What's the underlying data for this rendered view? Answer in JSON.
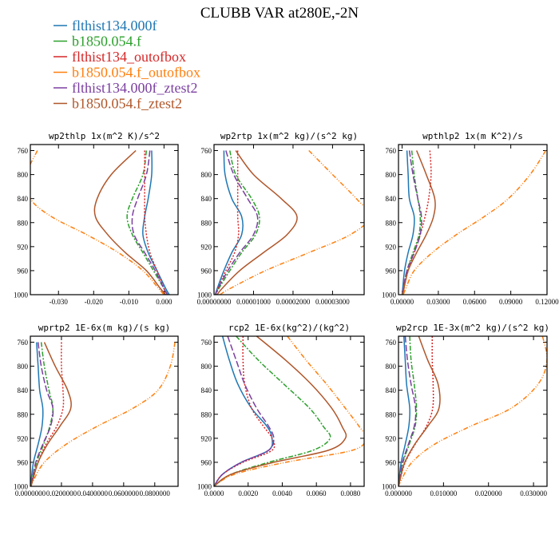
{
  "title": "CLUBB VAR at280E,-2N",
  "legend": [
    {
      "name": "flthist134.000f",
      "color": "#1f77b4",
      "dash": ""
    },
    {
      "name": "b1850.054.f",
      "color": "#2ca02c",
      "dash": "6 2 2 2"
    },
    {
      "name": "flthist134_outofbox",
      "color": "#d62728",
      "dash": "2 2"
    },
    {
      "name": "b1850.054.f_outofbox",
      "color": "#ff7f0e",
      "dash": "6 2 1 2 1 2"
    },
    {
      "name": "flthist134.000f_ztest2",
      "color": "#7b3fa0",
      "dash": "8 3"
    },
    {
      "name": "b1850.054.f_ztest2",
      "color": "#b0562a",
      "dash": ""
    }
  ],
  "chart_data": [
    {
      "type": "line",
      "title": "wp2thlp  1x(m^2 K)/s^2",
      "xlim": [
        -0.038,
        0.004
      ],
      "xticks": [
        -0.03,
        -0.02,
        -0.01,
        0.0
      ],
      "xticklabels": [
        "-0.030",
        "-0.020",
        "-0.010",
        "0.000"
      ],
      "ylim": [
        1000,
        750
      ],
      "yticks": [
        760,
        800,
        840,
        880,
        920,
        960,
        1000
      ],
      "y": [
        760,
        800,
        840,
        870,
        900,
        930,
        960,
        990,
        1000
      ],
      "series": [
        {
          "name": "flthist134.000f",
          "values": [
            -0.0035,
            -0.0035,
            -0.0045,
            -0.0055,
            -0.006,
            -0.0045,
            -0.002,
            0.0005,
            0.0015
          ]
        },
        {
          "name": "b1850.054.f",
          "values": [
            -0.005,
            -0.006,
            -0.009,
            -0.0105,
            -0.009,
            -0.006,
            -0.003,
            0.0,
            0.001
          ]
        },
        {
          "name": "flthist134_outofbox",
          "values": [
            -0.0055,
            -0.0055,
            -0.0055,
            -0.0055,
            -0.005,
            -0.004,
            -0.002,
            0.0,
            0.0005
          ]
        },
        {
          "name": "b1850.054.f_outofbox",
          "values": [
            -0.036,
            -0.039,
            -0.038,
            -0.032,
            -0.022,
            -0.013,
            -0.006,
            -0.0015,
            0.0
          ]
        },
        {
          "name": "flthist134.000f_ztest2",
          "values": [
            -0.004,
            -0.005,
            -0.0075,
            -0.009,
            -0.0085,
            -0.0055,
            -0.0025,
            0.0,
            0.001
          ]
        },
        {
          "name": "b1850.054.f_ztest2",
          "values": [
            -0.008,
            -0.015,
            -0.019,
            -0.0195,
            -0.016,
            -0.011,
            -0.005,
            -0.001,
            0.0005
          ]
        }
      ]
    },
    {
      "type": "line",
      "title": "wp2rtp  1x(m^2 kg)/(s^2 kg)",
      "xlim": [
        0,
        3.8e-05
      ],
      "xticks": [
        0,
        1e-05,
        2e-05,
        3e-05
      ],
      "xticklabels": [
        "0.00000000",
        "0.00001000",
        "0.00002000",
        "0.00003000"
      ],
      "ylim": [
        1000,
        750
      ],
      "yticks": [
        760,
        800,
        840,
        880,
        920,
        960,
        1000
      ],
      "y": [
        760,
        800,
        840,
        870,
        900,
        930,
        960,
        990,
        1000
      ],
      "series": [
        {
          "name": "flthist134.000f",
          "values": [
            2.5e-06,
            2.8e-06,
            4.5e-06,
            7e-06,
            7e-06,
            4.5e-06,
            2.5e-06,
            8e-07,
            3e-07
          ]
        },
        {
          "name": "b1850.054.f",
          "values": [
            4e-06,
            5.5e-06,
            9.5e-06,
            1.15e-05,
            1.05e-05,
            7e-06,
            4e-06,
            1.2e-06,
            5e-07
          ]
        },
        {
          "name": "flthist134_outofbox",
          "values": [
            6e-06,
            6e-06,
            6e-06,
            6e-06,
            6.2e-06,
            5.2e-06,
            3e-06,
            1e-06,
            4e-07
          ]
        },
        {
          "name": "b1850.054.f_outofbox",
          "values": [
            2.4e-05,
            3e-05,
            3.6e-05,
            3.95e-05,
            3.45e-05,
            2.4e-05,
            1.3e-05,
            4e-06,
            1.5e-06
          ]
        },
        {
          "name": "flthist134.000f_ztest2",
          "values": [
            3e-06,
            5e-06,
            8.5e-06,
            1.1e-05,
            1e-05,
            6.5e-06,
            3.5e-06,
            1e-06,
            4e-07
          ]
        },
        {
          "name": "b1850.054.f_ztest2",
          "values": [
            5.5e-06,
            1e-05,
            1.7e-05,
            2.1e-05,
            1.85e-05,
            1.25e-05,
            6.5e-06,
            2e-06,
            8e-07
          ]
        }
      ]
    },
    {
      "type": "line",
      "title": "wpthlp2  1x(m K^2)/s",
      "xlim": [
        -0.003,
        0.12
      ],
      "xticks": [
        0,
        0.03,
        0.06,
        0.09,
        0.12
      ],
      "xticklabels": [
        "0.00000",
        "0.03000",
        "0.06000",
        "0.09000",
        "0.12000"
      ],
      "ylim": [
        1000,
        750
      ],
      "yticks": [
        760,
        800,
        840,
        880,
        920,
        960,
        1000
      ],
      "y": [
        760,
        800,
        840,
        870,
        900,
        930,
        960,
        990,
        1000
      ],
      "series": [
        {
          "name": "flthist134.000f",
          "values": [
            0.004,
            0.005,
            0.006,
            0.01,
            0.009,
            0.005,
            0.002,
            0.0005,
            0.0
          ]
        },
        {
          "name": "b1850.054.f",
          "values": [
            0.008,
            0.01,
            0.013,
            0.015,
            0.014,
            0.009,
            0.004,
            0.001,
            0.0
          ]
        },
        {
          "name": "flthist134_outofbox",
          "values": [
            0.023,
            0.024,
            0.022,
            0.019,
            0.015,
            0.01,
            0.005,
            0.0015,
            0.0005
          ]
        },
        {
          "name": "b1850.054.f_outofbox",
          "values": [
            0.119,
            0.106,
            0.088,
            0.068,
            0.045,
            0.025,
            0.01,
            0.003,
            0.001
          ]
        },
        {
          "name": "flthist134.000f_ztest2",
          "values": [
            0.006,
            0.009,
            0.013,
            0.016,
            0.015,
            0.01,
            0.004,
            0.001,
            0.0
          ]
        },
        {
          "name": "b1850.054.f_ztest2",
          "values": [
            0.012,
            0.02,
            0.027,
            0.026,
            0.02,
            0.012,
            0.005,
            0.0015,
            0.0005
          ]
        }
      ]
    },
    {
      "type": "line",
      "title": "wprtp2  1E-6x(m kg)/(s kg)",
      "xlim": [
        0,
        0.095
      ],
      "xticks": [
        0,
        0.02,
        0.04,
        0.06,
        0.08
      ],
      "xticklabels": [
        "0.0000000",
        "0.0200000",
        "0.0400000",
        "0.0600000",
        "0.0800000"
      ],
      "ylim": [
        1000,
        750
      ],
      "yticks": [
        760,
        800,
        840,
        880,
        920,
        960,
        1000
      ],
      "y": [
        760,
        800,
        840,
        870,
        900,
        930,
        960,
        990,
        1000
      ],
      "series": [
        {
          "name": "flthist134.000f",
          "values": [
            0.004,
            0.005,
            0.006,
            0.008,
            0.0075,
            0.005,
            0.002,
            0.0005,
            0.0
          ]
        },
        {
          "name": "b1850.054.f",
          "values": [
            0.007,
            0.009,
            0.012,
            0.0145,
            0.0125,
            0.0085,
            0.004,
            0.001,
            0.0
          ]
        },
        {
          "name": "flthist134_outofbox",
          "values": [
            0.02,
            0.02,
            0.021,
            0.021,
            0.017,
            0.01,
            0.005,
            0.0015,
            0.0005
          ]
        },
        {
          "name": "b1850.054.f_outofbox",
          "values": [
            0.093,
            0.09,
            0.082,
            0.066,
            0.043,
            0.023,
            0.009,
            0.002,
            0.0005
          ]
        },
        {
          "name": "flthist134.000f_ztest2",
          "values": [
            0.005,
            0.007,
            0.0105,
            0.0145,
            0.013,
            0.008,
            0.0035,
            0.001,
            0.0
          ]
        },
        {
          "name": "b1850.054.f_ztest2",
          "values": [
            0.009,
            0.016,
            0.024,
            0.026,
            0.019,
            0.011,
            0.005,
            0.0015,
            0.0005
          ]
        }
      ]
    },
    {
      "type": "line",
      "title": "rcp2  1E-6x(kg^2)/(kg^2)",
      "xlim": [
        0,
        0.0088
      ],
      "xticks": [
        0,
        0.002,
        0.004,
        0.006,
        0.008
      ],
      "xticklabels": [
        "0.0000",
        "0.0020",
        "0.0040",
        "0.0060",
        "0.0080"
      ],
      "ylim": [
        1000,
        750
      ],
      "yticks": [
        760,
        800,
        840,
        880,
        920,
        960,
        1000
      ],
      "y": [
        750,
        790,
        830,
        870,
        900,
        920,
        940,
        960,
        980,
        1000
      ],
      "series": [
        {
          "name": "flthist134.000f",
          "values": [
            0.0005,
            0.0009,
            0.0014,
            0.0022,
            0.0031,
            0.0034,
            0.0032,
            0.0016,
            0.0005,
            0.0
          ]
        },
        {
          "name": "b1850.054.f",
          "values": [
            0.0013,
            0.0026,
            0.0041,
            0.0056,
            0.0064,
            0.0068,
            0.0058,
            0.0032,
            0.001,
            0.0
          ]
        },
        {
          "name": "flthist134_outofbox",
          "values": [
            0.0017,
            0.0017,
            0.0018,
            0.0022,
            0.0029,
            0.0034,
            0.0034,
            0.0017,
            0.0005,
            0.0
          ]
        },
        {
          "name": "b1850.054.f_outofbox",
          "values": [
            0.0043,
            0.0054,
            0.0066,
            0.0077,
            0.0085,
            0.0089,
            0.0081,
            0.0042,
            0.0012,
            0.0
          ]
        },
        {
          "name": "flthist134.000f_ztest2",
          "values": [
            0.0008,
            0.0013,
            0.0018,
            0.0025,
            0.0032,
            0.0035,
            0.0032,
            0.0016,
            0.0005,
            0.0
          ]
        },
        {
          "name": "b1850.054.f_ztest2",
          "values": [
            0.0025,
            0.0042,
            0.0057,
            0.0069,
            0.0075,
            0.0077,
            0.0067,
            0.0035,
            0.001,
            0.0
          ]
        }
      ]
    },
    {
      "type": "line",
      "title": "wp2rcp  1E-3x(m^2 kg)/(s^2 kg)",
      "xlim": [
        0,
        0.033
      ],
      "xticks": [
        0,
        0.01,
        0.02,
        0.03
      ],
      "xticklabels": [
        "0.000000",
        "0.010000",
        "0.020000",
        "0.030000"
      ],
      "ylim": [
        1000,
        750
      ],
      "yticks": [
        760,
        800,
        840,
        880,
        920,
        960,
        1000
      ],
      "y": [
        750,
        790,
        830,
        870,
        900,
        930,
        960,
        990,
        1000
      ],
      "series": [
        {
          "name": "flthist134.000f",
          "values": [
            0.0012,
            0.0015,
            0.0018,
            0.0025,
            0.0023,
            0.0015,
            0.0006,
            0.0001,
            0.0
          ]
        },
        {
          "name": "b1850.054.f",
          "values": [
            0.0025,
            0.0028,
            0.0035,
            0.004,
            0.0037,
            0.0024,
            0.001,
            0.0002,
            0.0
          ]
        },
        {
          "name": "flthist134_outofbox",
          "values": [
            0.0075,
            0.0075,
            0.0077,
            0.0076,
            0.0062,
            0.0037,
            0.0015,
            0.0003,
            0.0
          ]
        },
        {
          "name": "b1850.054.f_outofbox",
          "values": [
            0.032,
            0.033,
            0.031,
            0.025,
            0.016,
            0.008,
            0.003,
            0.0006,
            0.0
          ]
        },
        {
          "name": "flthist134.000f_ztest2",
          "values": [
            0.0015,
            0.002,
            0.0028,
            0.0038,
            0.0035,
            0.0022,
            0.0009,
            0.0002,
            0.0
          ]
        },
        {
          "name": "b1850.054.f_ztest2",
          "values": [
            0.0045,
            0.0065,
            0.0088,
            0.009,
            0.0065,
            0.0036,
            0.0014,
            0.0003,
            0.0
          ]
        }
      ]
    }
  ]
}
